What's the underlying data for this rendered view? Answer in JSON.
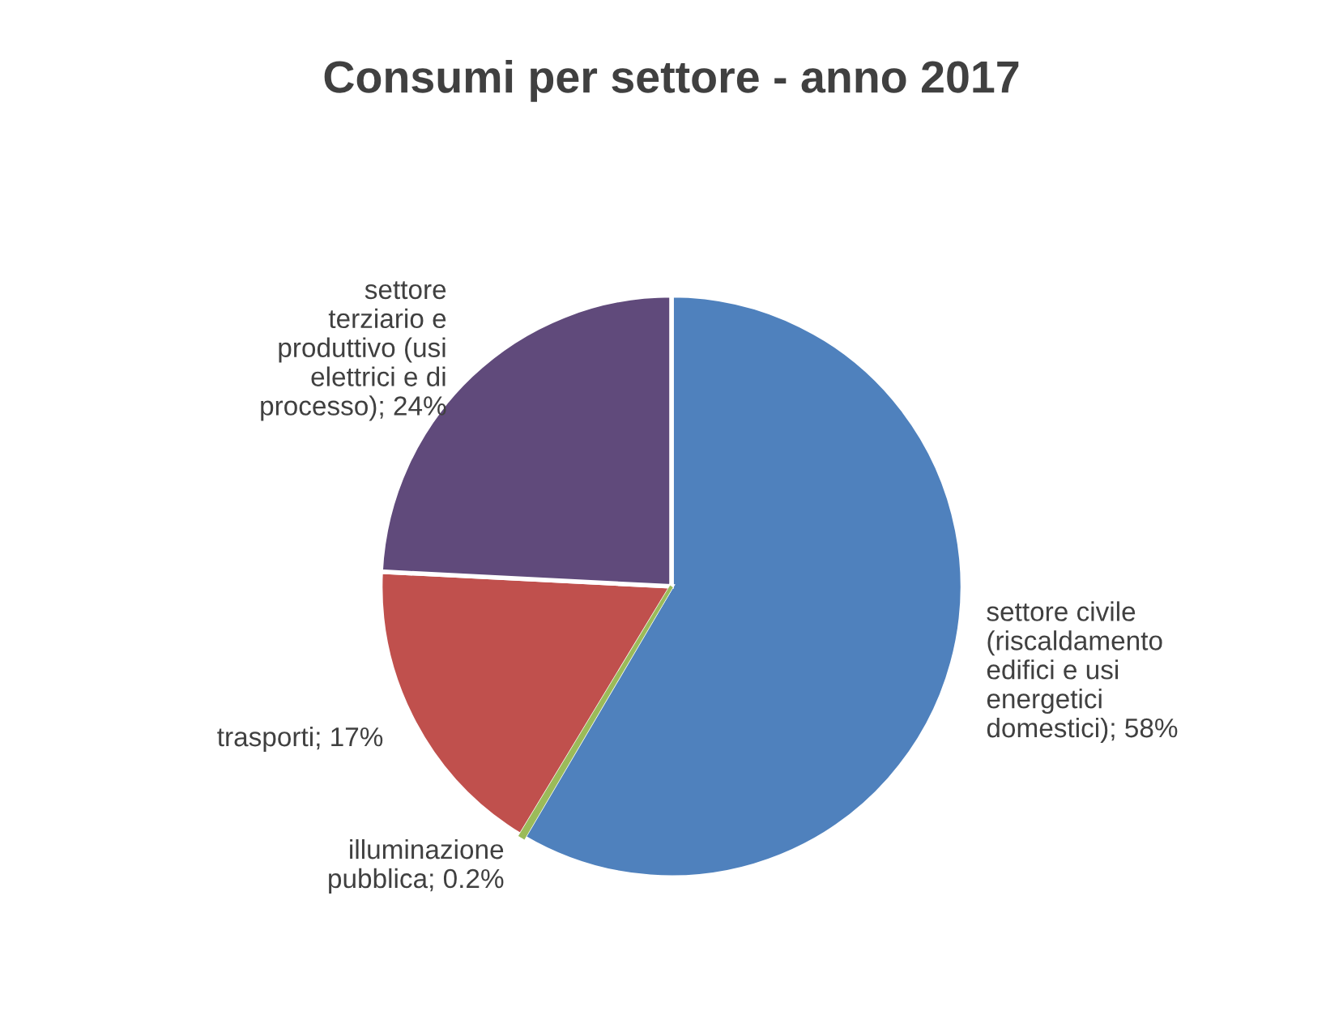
{
  "chart_data": {
    "type": "pie",
    "title": "Consumi per settore - anno 2017",
    "categories": [
      "settore civile (riscaldamento edifici e usi energetici domestici)",
      "illuminazione pubblica",
      "trasporti",
      "settore terziario e produttivo (usi elettrici e di processo)"
    ],
    "values": [
      58,
      0.2,
      17,
      24
    ],
    "value_labels": [
      "58%",
      "0.2%",
      "17%",
      "24%"
    ],
    "colors": [
      "#4f81bd",
      "#9bbb59",
      "#c0504d",
      "#604a7b"
    ]
  }
}
